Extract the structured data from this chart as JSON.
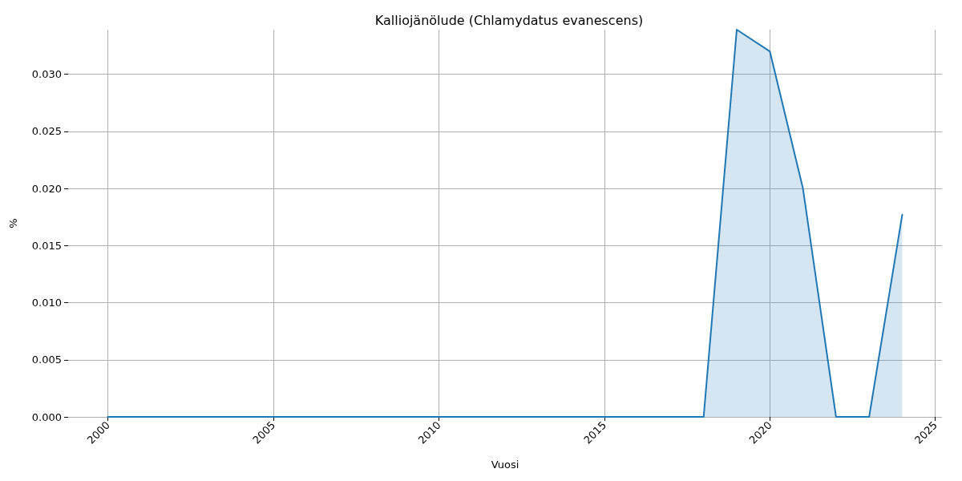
{
  "chart_data": {
    "type": "area",
    "title": "Kalliojänölude (Chlamydatus evanescens)",
    "xlabel": "Vuosi",
    "ylabel": "%",
    "x": [
      2000,
      2001,
      2002,
      2003,
      2004,
      2005,
      2006,
      2007,
      2008,
      2009,
      2010,
      2011,
      2012,
      2013,
      2014,
      2015,
      2016,
      2017,
      2018,
      2019,
      2020,
      2021,
      2022,
      2023,
      2024
    ],
    "series": [
      {
        "color": "#1f77b4",
        "values": [
          0,
          0,
          0,
          0,
          0,
          0,
          0,
          0,
          0,
          0,
          0,
          0,
          0,
          0,
          0,
          0,
          0,
          0,
          0,
          0.0339,
          0.032,
          0.02,
          0,
          0,
          0.0177
        ]
      }
    ],
    "xlim": [
      1998.8,
      2025.2
    ],
    "xticks": [
      2000,
      2005,
      2010,
      2015,
      2020,
      2025
    ],
    "ylim": [
      0,
      0.0339
    ],
    "yticks": [
      {
        "value": 0,
        "label": "0.000"
      },
      0.005,
      {
        "value": 0.01,
        "label": "0.010"
      },
      0.015,
      {
        "value": 0.02,
        "label": "0.020"
      },
      0.025,
      {
        "value": 0.03,
        "label": "0.030"
      }
    ],
    "grid": true,
    "marker": "none",
    "line_style": "solid"
  }
}
